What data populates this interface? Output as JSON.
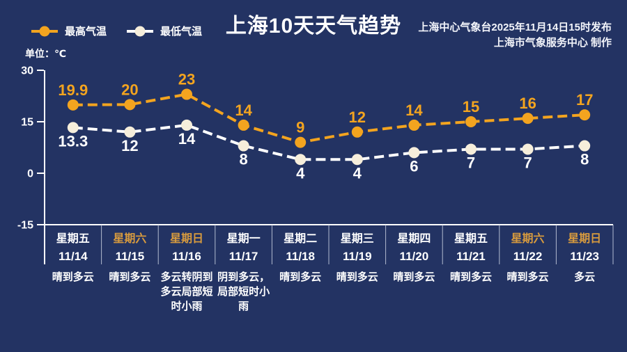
{
  "header": {
    "title": "上海10天天气趋势",
    "publisher_line1": "上海中心气象台2025年11月14日15时发布",
    "publisher_line2": "上海市气象服务中心  制作",
    "unit_label": "单位：℃",
    "legend": [
      {
        "label": "最高气温",
        "line_color": "#f3a41f",
        "dot_color": "#f3a41f"
      },
      {
        "label": "最低气温",
        "line_color": "#ffffff",
        "dot_color": "#f6eedb"
      }
    ]
  },
  "colors": {
    "background": "#233363",
    "axis": "#ffffff",
    "divider": "#ccd3e3",
    "weekday_label": "#ffffff",
    "weekend_label": "#d89b3e",
    "high_series": "#f3a41f",
    "low_series": "#ffffff"
  },
  "chart_data": {
    "type": "line",
    "title": "上海10天天气趋势",
    "ylabel": "单位：℃",
    "yticks": [
      30,
      15,
      0,
      -15
    ],
    "ylim": [
      -15,
      30
    ],
    "grid": false,
    "legend_position": "top-left",
    "categories": [
      "11/14",
      "11/15",
      "11/16",
      "11/17",
      "11/18",
      "11/19",
      "11/20",
      "11/21",
      "11/22",
      "11/23"
    ],
    "weekdays": [
      "星期五",
      "星期六",
      "星期日",
      "星期一",
      "星期二",
      "星期三",
      "星期四",
      "星期五",
      "星期六",
      "星期日"
    ],
    "weekend_flags": [
      false,
      true,
      true,
      false,
      false,
      false,
      false,
      false,
      true,
      true
    ],
    "weather": [
      "晴到多云",
      "晴到多云",
      "多云转阴到多云局部短时小雨",
      "阴到多云，局部短时小雨",
      "晴到多云",
      "晴到多云",
      "晴到多云",
      "晴到多云",
      "晴到多云",
      "多云"
    ],
    "series": [
      {
        "name": "最高气温",
        "values": [
          19.9,
          20,
          23,
          14,
          9,
          12,
          14,
          15,
          16,
          17
        ],
        "line_color": "#f3a41f",
        "dot_color": "#f3a41f",
        "label_color": "#f3a41f",
        "label_position": "above"
      },
      {
        "name": "最低气温",
        "values": [
          13.3,
          12,
          14,
          8,
          4,
          4,
          6,
          7,
          7,
          8
        ],
        "line_color": "#ffffff",
        "dot_color": "#f6eedb",
        "label_color": "#ffffff",
        "label_position": "below"
      }
    ]
  }
}
